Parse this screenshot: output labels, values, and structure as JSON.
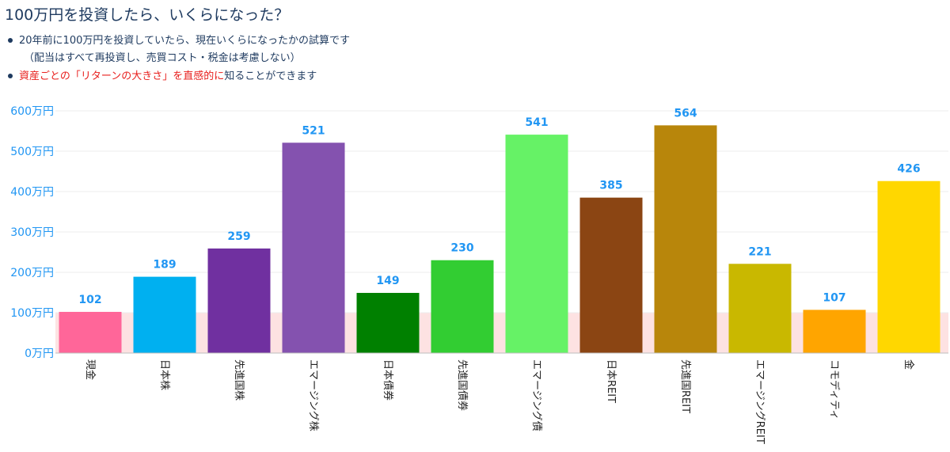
{
  "title": "100万円を投資したら、いくらになった？",
  "bullets": {
    "line1": "20年前に100万円を投資していたら、現在いくらになったかの試算です",
    "line2": "（配当はすべて再投資し、売買コスト・税金は考慮しない）",
    "line3_red": "資産ごとの「リターンの大きさ」を直感的に",
    "line3_rest": "知ることができます"
  },
  "colors": {
    "accent": "#1e3a5f",
    "value_label": "#2196f3",
    "highlight": "#e8201e",
    "baseline_band": "#fde2e2"
  },
  "chart_data": {
    "type": "bar",
    "categories": [
      "現金",
      "日本株",
      "先進国株",
      "エマージング株",
      "日本債券",
      "先進国債券",
      "エマージング債",
      "日本REIT",
      "先進国REIT",
      "エマージングREIT",
      "コモディティ",
      "金"
    ],
    "values": [
      102,
      189,
      259,
      521,
      149,
      230,
      541,
      385,
      564,
      221,
      107,
      426
    ],
    "value_labels": [
      "102",
      "189",
      "259",
      "521",
      "149",
      "230",
      "541",
      "385",
      "564",
      "221",
      "107",
      "426"
    ],
    "colors": [
      "#ff6699",
      "#00b0f0",
      "#7030a0",
      "#8452af",
      "#008000",
      "#32cd32",
      "#66f266",
      "#8b4513",
      "#b8860b",
      "#c9b800",
      "#ffa500",
      "#ffd700"
    ],
    "ylim": [
      0,
      600
    ],
    "yticks": [
      0,
      100,
      200,
      300,
      400,
      500,
      600
    ],
    "ytick_labels": [
      "0万円",
      "100万円",
      "200万円",
      "300万円",
      "400万円",
      "500万円",
      "600万円"
    ],
    "reference_band": [
      0,
      100
    ],
    "grid": true
  }
}
